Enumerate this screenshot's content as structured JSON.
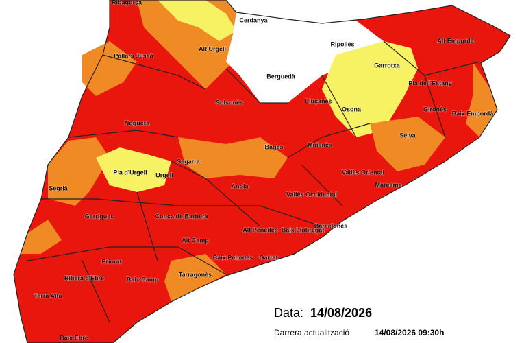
{
  "map": {
    "labels": [
      "Ribagorça",
      "Cerdanya",
      "Alt Urgell",
      "Ripollès",
      "Alt Empordà",
      "Pallars Jussà",
      "Berguedà",
      "Garrotxa",
      "Pla de l'Estany",
      "Solsonès",
      "Lluçanès",
      "Osona",
      "Gironès",
      "Baix Empordà",
      "Noguera",
      "Selva",
      "Bages",
      "Moianès",
      "Pla d'Urgell",
      "Urgell",
      "Segarra",
      "Vallès Oriental",
      "Segrià",
      "Anoia",
      "Maresme",
      "Vallès Occidental",
      "Garrigues",
      "Conca de Barberà",
      "Alt Penedès",
      "Baix Llobregat",
      "Barcelonès",
      "Alt Camp",
      "Priorat",
      "Baix Penedès",
      "Garraf",
      "Ribera d'Ebre",
      "Baix Camp",
      "Tarragonès",
      "Terra Alta",
      "Baix Ebre"
    ],
    "footer": {
      "date_label": "Data:",
      "date": "14/08/2026",
      "update_label": "Darrera actualització",
      "update": "14/08/2026 09:30h"
    }
  }
}
